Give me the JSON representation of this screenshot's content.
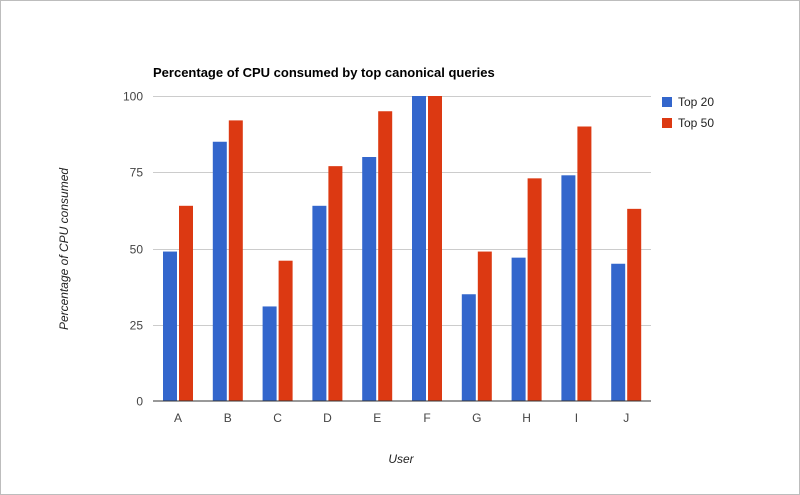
{
  "chart_data": {
    "type": "bar",
    "title": "Percentage of CPU consumed by top canonical queries",
    "xlabel": "User",
    "ylabel": "Percentage of CPU consumed",
    "categories": [
      "A",
      "B",
      "C",
      "D",
      "E",
      "F",
      "G",
      "H",
      "I",
      "J"
    ],
    "series": [
      {
        "name": "Top 20",
        "color": "#3366cc",
        "values": [
          49,
          85,
          31,
          64,
          80,
          100,
          35,
          47,
          74,
          45
        ]
      },
      {
        "name": "Top 50",
        "color": "#dc3912",
        "values": [
          64,
          92,
          46,
          77,
          95,
          100,
          49,
          73,
          90,
          63
        ]
      }
    ],
    "ylim": [
      0,
      100
    ],
    "yticks": [
      0,
      25,
      50,
      75,
      100
    ],
    "grid": true,
    "legend_position": "right"
  }
}
